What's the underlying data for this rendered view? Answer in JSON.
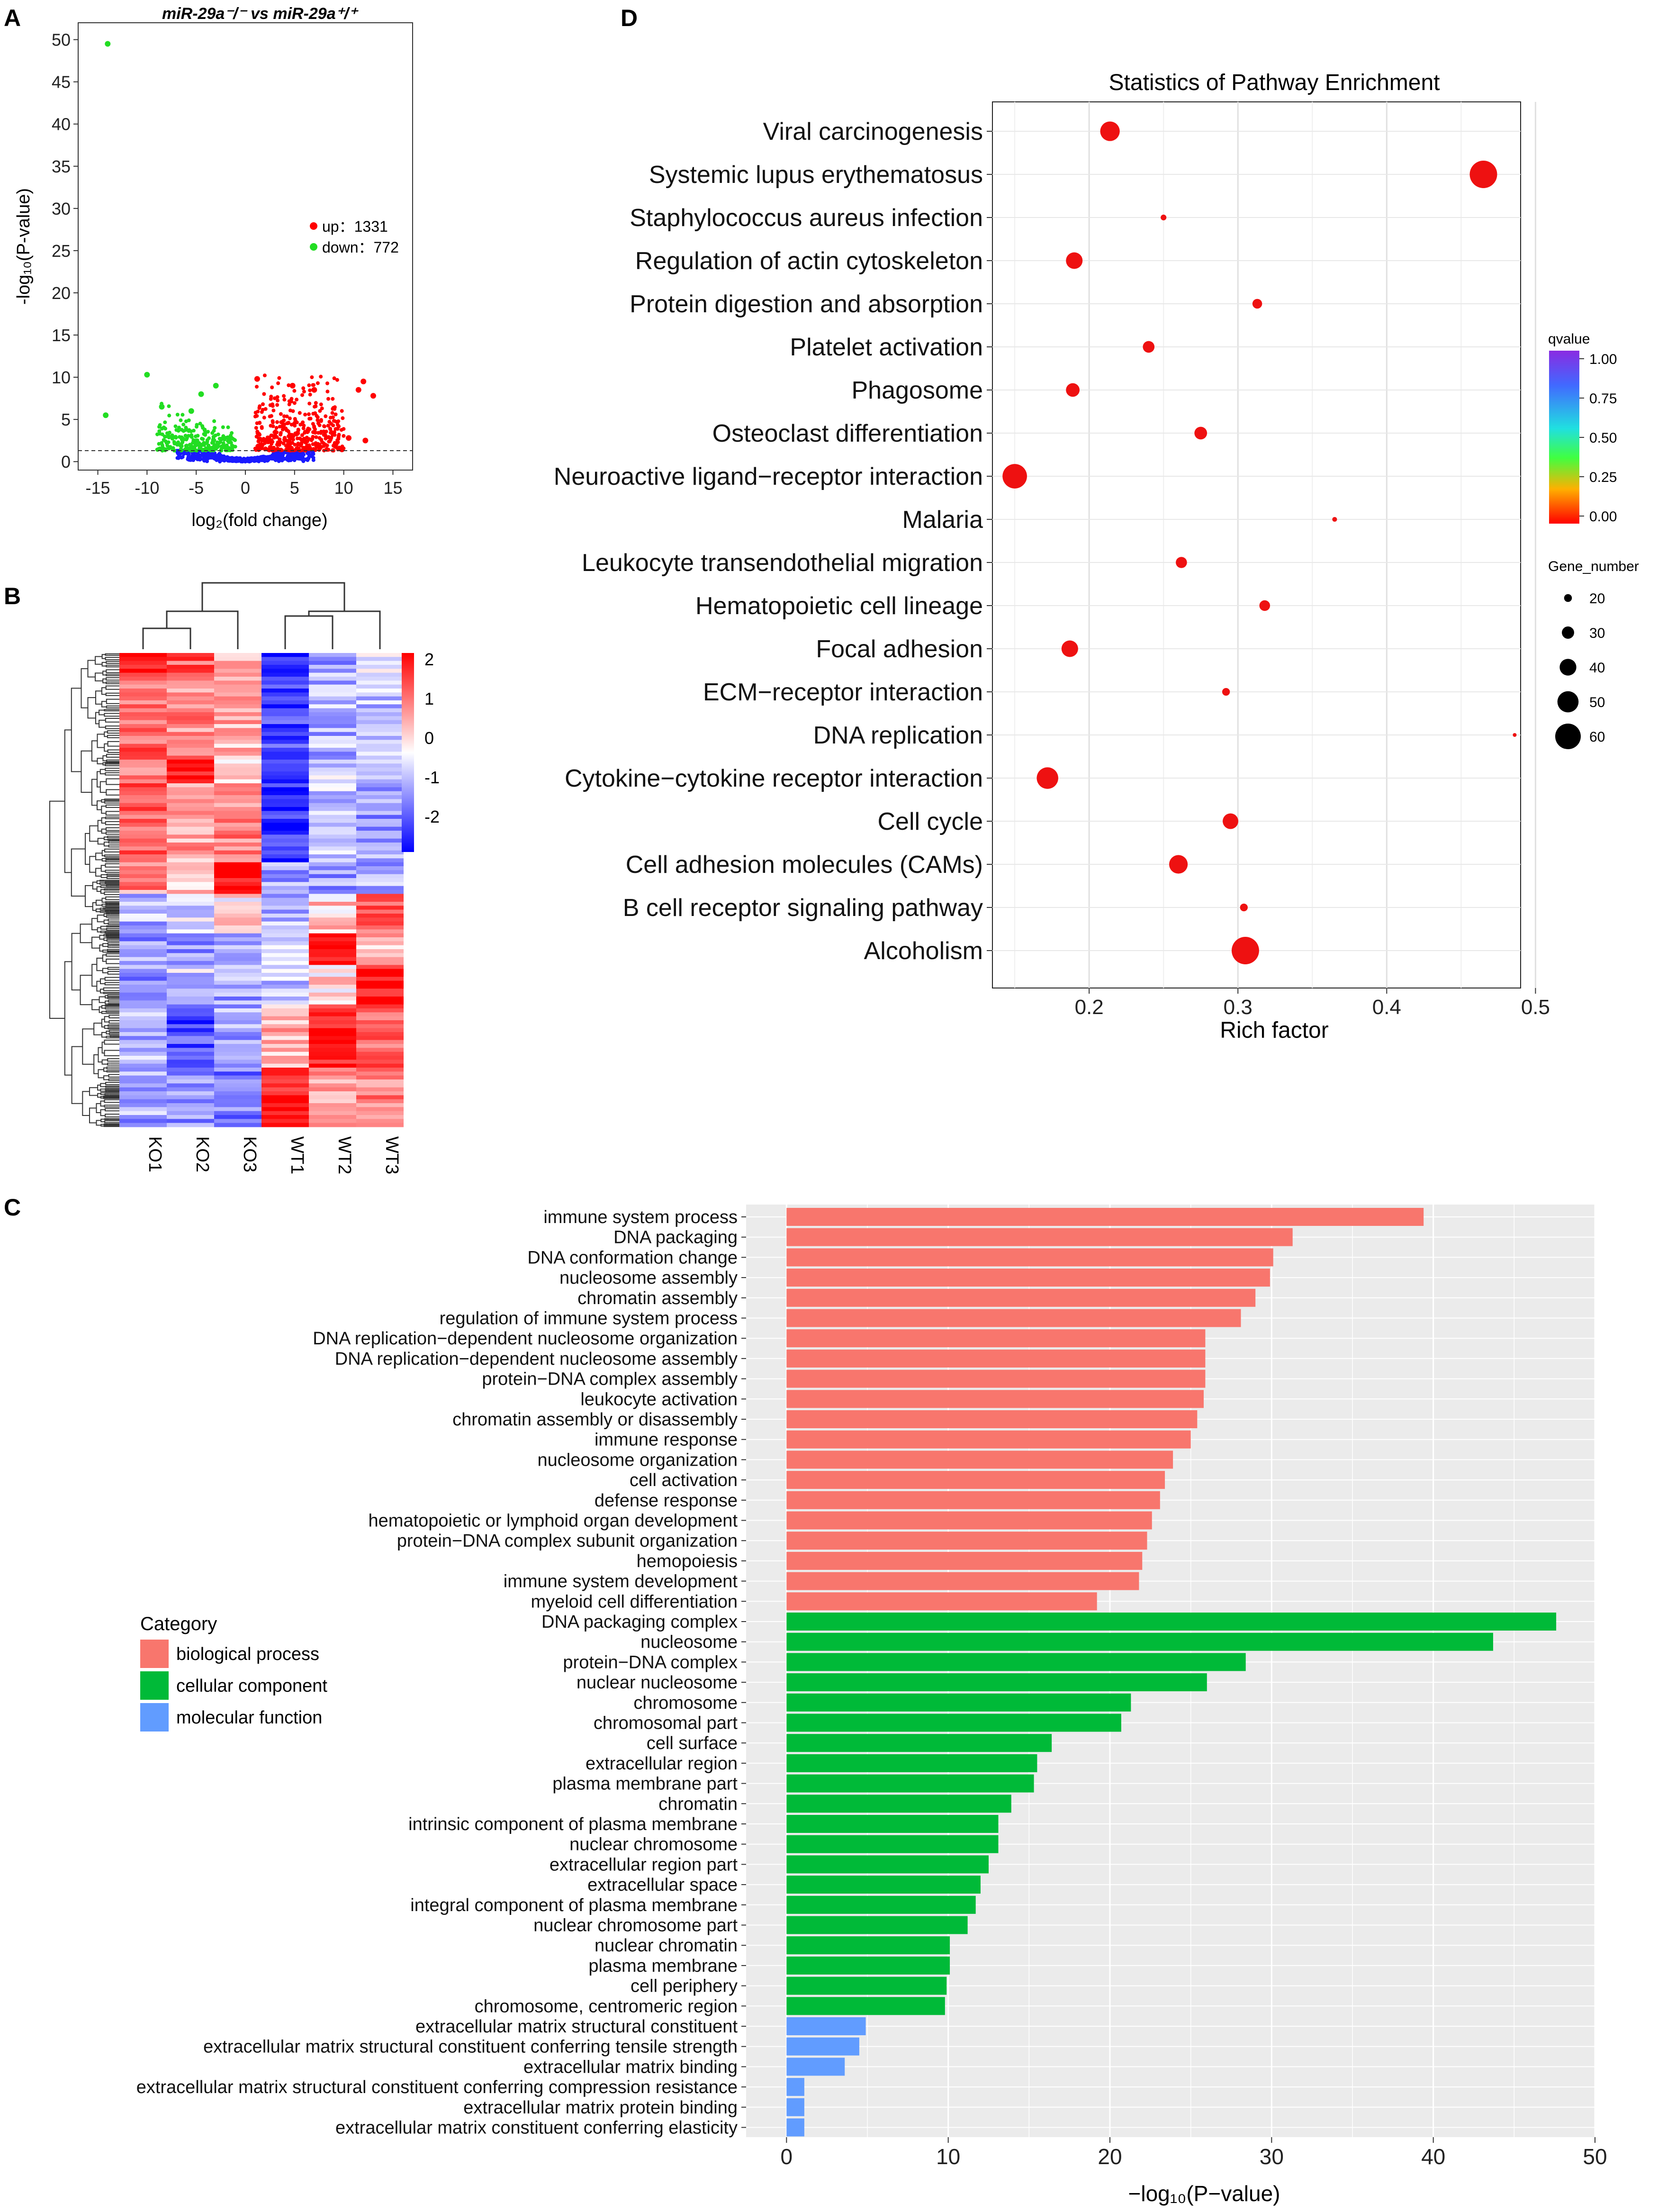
{
  "panel_labels": {
    "a": "A",
    "b": "B",
    "c": "C",
    "d": "D"
  },
  "colors": {
    "up": "#ff0000",
    "down": "#22dd22",
    "ns": "#1a1aff",
    "bp": "#f8766d",
    "cc": "#00ba38",
    "mf": "#619cff",
    "dot": "#ee1111",
    "grid_bg": "#ebebeb"
  },
  "chart_data": [
    {
      "id": "volcano",
      "type": "scatter",
      "title": "miR-29a⁻/⁻ vs miR-29a⁺/⁺",
      "xlabel": "log₂(fold change)",
      "ylabel": "-log₁₀(P-value)",
      "xlim": [
        -17,
        17
      ],
      "ylim": [
        -1,
        52
      ],
      "xticks": [
        -15,
        -10,
        -5,
        0,
        5,
        10,
        15
      ],
      "yticks": [
        0,
        5,
        10,
        15,
        20,
        25,
        30,
        35,
        40,
        45,
        50
      ],
      "threshold_y": 1.3,
      "legend": [
        {
          "label": "up：1331",
          "color_key": "up"
        },
        {
          "label": "down：772",
          "color_key": "down"
        }
      ],
      "highlight_points": [
        {
          "x": -14,
          "y": 49.5,
          "group": "down"
        },
        {
          "x": -14.2,
          "y": 5.5,
          "group": "down"
        },
        {
          "x": -10,
          "y": 10.3,
          "group": "down"
        },
        {
          "x": -8.5,
          "y": 6.5,
          "group": "down"
        },
        {
          "x": -5.5,
          "y": 6.0,
          "group": "down"
        },
        {
          "x": -4.5,
          "y": 8.0,
          "group": "down"
        },
        {
          "x": -3.0,
          "y": 9.0,
          "group": "down"
        },
        {
          "x": 1.2,
          "y": 9.8,
          "group": "up"
        },
        {
          "x": 4.8,
          "y": 9.0,
          "group": "up"
        },
        {
          "x": 7.0,
          "y": 8.5,
          "group": "up"
        },
        {
          "x": 11.5,
          "y": 8.5,
          "group": "up"
        },
        {
          "x": 12.0,
          "y": 9.5,
          "group": "up"
        },
        {
          "x": 13.0,
          "y": 7.8,
          "group": "up"
        },
        {
          "x": 12.2,
          "y": 2.5,
          "group": "up"
        },
        {
          "x": 10.5,
          "y": 2.8,
          "group": "up"
        }
      ]
    },
    {
      "id": "heatmap",
      "type": "heatmap",
      "columns": [
        "KO1",
        "KO2",
        "KO3",
        "WT1",
        "WT2",
        "WT3"
      ],
      "colorbar": {
        "min": -2,
        "max": 2,
        "ticks": [
          "2",
          "1",
          "0",
          "-1",
          "-2"
        ]
      },
      "blocks": [
        {
          "rows": 5,
          "values": [
            2.0,
            1.3,
            0.6,
            -1.8,
            -0.7,
            -0.3
          ]
        },
        {
          "rows": 22,
          "values": [
            1.2,
            0.9,
            0.6,
            -1.5,
            -0.6,
            -0.5
          ]
        },
        {
          "rows": 6,
          "values": [
            0.8,
            2.0,
            0.4,
            -1.4,
            -0.3,
            -0.4
          ]
        },
        {
          "rows": 20,
          "values": [
            1.2,
            0.7,
            1.0,
            -1.7,
            -0.4,
            -0.8
          ]
        },
        {
          "rows": 8,
          "values": [
            0.9,
            0.4,
            2.0,
            -0.8,
            -0.8,
            -0.6
          ]
        },
        {
          "rows": 10,
          "values": [
            -0.6,
            -0.3,
            0.2,
            -0.5,
            0.4,
            1.2
          ]
        },
        {
          "rows": 8,
          "values": [
            -0.8,
            -0.9,
            -0.6,
            -0.3,
            2.0,
            0.5
          ]
        },
        {
          "rows": 10,
          "values": [
            -0.9,
            -0.4,
            -0.7,
            -0.4,
            0.3,
            2.0
          ]
        },
        {
          "rows": 16,
          "values": [
            -0.6,
            -1.4,
            -0.7,
            0.6,
            1.8,
            1.2
          ]
        },
        {
          "rows": 15,
          "values": [
            -0.7,
            -0.8,
            -1.0,
            1.9,
            0.8,
            1.0
          ]
        }
      ]
    },
    {
      "id": "go_bar",
      "type": "bar",
      "orientation": "horizontal",
      "xlabel": "−log₁₀(P−value)",
      "xlim": [
        -2.5,
        50
      ],
      "xticks": [
        0,
        10,
        20,
        30,
        40,
        50
      ],
      "legend_title": "Category",
      "legend": [
        {
          "label": "biological process",
          "color_key": "bp"
        },
        {
          "label": "cellular component",
          "color_key": "cc"
        },
        {
          "label": "molecular function",
          "color_key": "mf"
        }
      ],
      "bars": [
        {
          "label": "immune system process",
          "value": 39.4,
          "cat": "bp"
        },
        {
          "label": "DNA packaging",
          "value": 31.3,
          "cat": "bp"
        },
        {
          "label": "DNA conformation change",
          "value": 30.1,
          "cat": "bp"
        },
        {
          "label": "nucleosome assembly",
          "value": 29.9,
          "cat": "bp"
        },
        {
          "label": "chromatin assembly",
          "value": 29.0,
          "cat": "bp"
        },
        {
          "label": "regulation of immune system process",
          "value": 28.1,
          "cat": "bp"
        },
        {
          "label": "DNA replication−dependent nucleosome organization",
          "value": 25.9,
          "cat": "bp"
        },
        {
          "label": "DNA replication−dependent nucleosome assembly",
          "value": 25.9,
          "cat": "bp"
        },
        {
          "label": "protein−DNA complex assembly",
          "value": 25.9,
          "cat": "bp"
        },
        {
          "label": "leukocyte activation",
          "value": 25.8,
          "cat": "bp"
        },
        {
          "label": "chromatin assembly or disassembly",
          "value": 25.4,
          "cat": "bp"
        },
        {
          "label": "immune response",
          "value": 25.0,
          "cat": "bp"
        },
        {
          "label": "nucleosome organization",
          "value": 23.9,
          "cat": "bp"
        },
        {
          "label": "cell activation",
          "value": 23.4,
          "cat": "bp"
        },
        {
          "label": "defense response",
          "value": 23.1,
          "cat": "bp"
        },
        {
          "label": "hematopoietic or lymphoid organ development",
          "value": 22.6,
          "cat": "bp"
        },
        {
          "label": "protein−DNA complex subunit organization",
          "value": 22.3,
          "cat": "bp"
        },
        {
          "label": "hemopoiesis",
          "value": 22.0,
          "cat": "bp"
        },
        {
          "label": "immune system development",
          "value": 21.8,
          "cat": "bp"
        },
        {
          "label": "myeloid cell differentiation",
          "value": 19.2,
          "cat": "bp"
        },
        {
          "label": "DNA packaging complex",
          "value": 47.6,
          "cat": "cc"
        },
        {
          "label": "nucleosome",
          "value": 43.7,
          "cat": "cc"
        },
        {
          "label": "protein−DNA complex",
          "value": 28.4,
          "cat": "cc"
        },
        {
          "label": "nuclear nucleosome",
          "value": 26.0,
          "cat": "cc"
        },
        {
          "label": "chromosome",
          "value": 21.3,
          "cat": "cc"
        },
        {
          "label": "chromosomal part",
          "value": 20.7,
          "cat": "cc"
        },
        {
          "label": "cell surface",
          "value": 16.4,
          "cat": "cc"
        },
        {
          "label": "extracellular region",
          "value": 15.5,
          "cat": "cc"
        },
        {
          "label": "plasma membrane part",
          "value": 15.3,
          "cat": "cc"
        },
        {
          "label": "chromatin",
          "value": 13.9,
          "cat": "cc"
        },
        {
          "label": "intrinsic component of plasma membrane",
          "value": 13.1,
          "cat": "cc"
        },
        {
          "label": "nuclear chromosome",
          "value": 13.1,
          "cat": "cc"
        },
        {
          "label": "extracellular region part",
          "value": 12.5,
          "cat": "cc"
        },
        {
          "label": "extracellular space",
          "value": 12.0,
          "cat": "cc"
        },
        {
          "label": "integral component of plasma membrane",
          "value": 11.7,
          "cat": "cc"
        },
        {
          "label": "nuclear chromosome part",
          "value": 11.2,
          "cat": "cc"
        },
        {
          "label": "nuclear chromatin",
          "value": 10.1,
          "cat": "cc"
        },
        {
          "label": "plasma membrane",
          "value": 10.1,
          "cat": "cc"
        },
        {
          "label": "cell periphery",
          "value": 9.9,
          "cat": "cc"
        },
        {
          "label": "chromosome, centromeric region",
          "value": 9.8,
          "cat": "cc"
        },
        {
          "label": "extracellular matrix structural constituent",
          "value": 4.9,
          "cat": "mf"
        },
        {
          "label": "extracellular matrix structural constituent conferring tensile strength",
          "value": 4.5,
          "cat": "mf"
        },
        {
          "label": "extracellular matrix binding",
          "value": 3.6,
          "cat": "mf"
        },
        {
          "label": "extracellular matrix structural constituent conferring compression resistance",
          "value": 1.1,
          "cat": "mf"
        },
        {
          "label": "extracellular matrix protein binding",
          "value": 1.1,
          "cat": "mf"
        },
        {
          "label": "extracellular matrix constituent conferring elasticity",
          "value": 1.1,
          "cat": "mf"
        }
      ]
    },
    {
      "id": "kegg_bubble",
      "type": "scatter",
      "title": "Statistics of Pathway Enrichment",
      "xlabel": "Rich factor",
      "xlim": [
        0.135,
        0.49
      ],
      "xticks": [
        0.2,
        0.3,
        0.4,
        0.5
      ],
      "xtick_labels": [
        "0.2",
        "0.3",
        "0.4",
        "0.5"
      ],
      "qvalue_legend": {
        "title": "qvalue",
        "ticks": [
          "1.00",
          "0.75",
          "0.50",
          "0.25",
          "0.00"
        ]
      },
      "size_legend": {
        "title": "Gene_number",
        "sizes": [
          20,
          30,
          40,
          50,
          60
        ],
        "labels": [
          "20",
          "30",
          "40",
          "50",
          "60"
        ]
      },
      "points": [
        {
          "label": "Viral carcinogenesis",
          "x": 0.214,
          "genes": 42
        },
        {
          "label": "Systemic lupus erythematosus",
          "x": 0.465,
          "genes": 58
        },
        {
          "label": "Staphylococcus aureus infection",
          "x": 0.25,
          "genes": 14
        },
        {
          "label": "Regulation of actin cytoskeleton",
          "x": 0.19,
          "genes": 36
        },
        {
          "label": "Protein digestion and absorption",
          "x": 0.313,
          "genes": 22
        },
        {
          "label": "Platelet activation",
          "x": 0.24,
          "genes": 26
        },
        {
          "label": "Phagosome",
          "x": 0.189,
          "genes": 30
        },
        {
          "label": "Osteoclast differentiation",
          "x": 0.275,
          "genes": 28
        },
        {
          "label": "Neuroactive ligand−receptor interaction",
          "x": 0.15,
          "genes": 52
        },
        {
          "label": "Malaria",
          "x": 0.365,
          "genes": 12
        },
        {
          "label": "Leukocyte transendothelial migration",
          "x": 0.262,
          "genes": 25
        },
        {
          "label": "Hematopoietic cell lineage",
          "x": 0.318,
          "genes": 24
        },
        {
          "label": "Focal adhesion",
          "x": 0.187,
          "genes": 36
        },
        {
          "label": "ECM−receptor interaction",
          "x": 0.292,
          "genes": 18
        },
        {
          "label": "DNA replication",
          "x": 0.486,
          "genes": 10
        },
        {
          "label": "Cytokine−cytokine receptor interaction",
          "x": 0.172,
          "genes": 46
        },
        {
          "label": "Cell cycle",
          "x": 0.295,
          "genes": 34
        },
        {
          "label": "Cell adhesion molecules (CAMs)",
          "x": 0.26,
          "genes": 40
        },
        {
          "label": "B cell receptor signaling pathway",
          "x": 0.304,
          "genes": 18
        },
        {
          "label": "Alcoholism",
          "x": 0.305,
          "genes": 58
        }
      ]
    }
  ]
}
